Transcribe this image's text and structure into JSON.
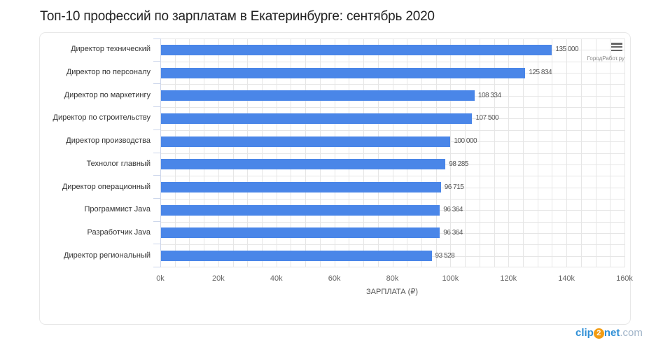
{
  "title": "Топ-10 профессий по зарплатам в Екатеринбурге: сентябрь 2020",
  "credit": "ГородРабот.ру",
  "watermark": {
    "part1": "clip",
    "part2": "2",
    "part3": "net",
    "part4": ".com"
  },
  "menu_icon": "hamburger-menu-icon",
  "colors": {
    "bar": "#4a86e8",
    "grid": "#e6e6e6"
  },
  "chart_data": {
    "type": "bar",
    "orientation": "horizontal",
    "title": "Топ-10 профессий по зарплатам в Екатеринбурге: сентябрь 2020",
    "xlabel": "ЗАРПЛАТА (₽)",
    "ylabel": "",
    "xlim": [
      0,
      160000
    ],
    "x_ticks": [
      "0k",
      "20k",
      "40k",
      "60k",
      "80k",
      "100k",
      "120k",
      "140k",
      "160k"
    ],
    "grid": true,
    "legend": false,
    "categories": [
      "Директор технический",
      "Директор по персоналу",
      "Директор по маркетингу",
      "Директор по строительству",
      "Директор производства",
      "Технолог главный",
      "Директор операционный",
      "Программист Java",
      "Разработчик Java",
      "Директор региональный"
    ],
    "values": [
      135000,
      125834,
      108334,
      107500,
      100000,
      98285,
      96715,
      96364,
      96364,
      93528
    ],
    "value_labels": [
      "135 000",
      "125 834",
      "108 334",
      "107 500",
      "100 000",
      "98 285",
      "96 715",
      "96 364",
      "96 364",
      "93 528"
    ]
  }
}
